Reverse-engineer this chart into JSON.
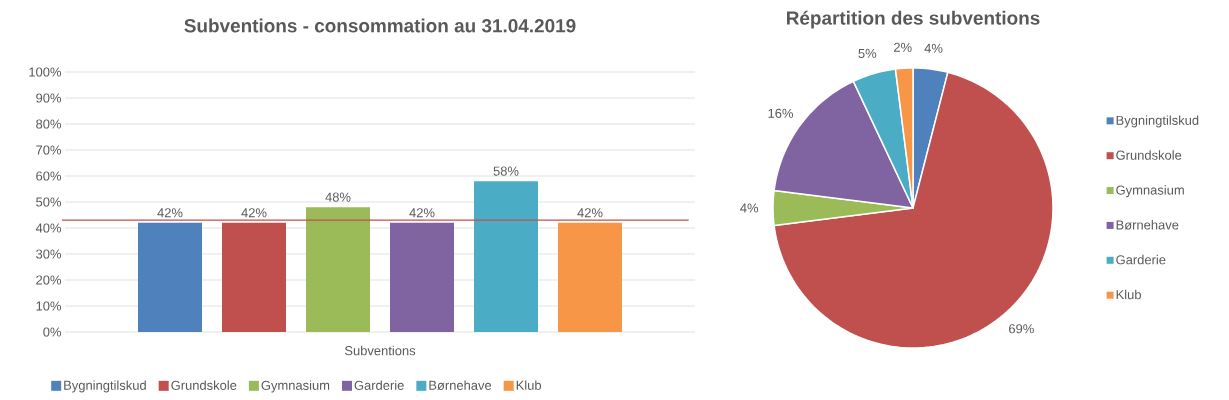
{
  "chart_data": [
    {
      "type": "bar",
      "title": "Subventions - consommation au 31.04.2019",
      "categories": [
        "Subventions"
      ],
      "series": [
        {
          "name": "Bygningtilskud",
          "color": "#4f81bd",
          "values": [
            42
          ],
          "value_labels": [
            "42%"
          ]
        },
        {
          "name": "Grundskole",
          "color": "#c0504d",
          "values": [
            42
          ],
          "value_labels": [
            "42%"
          ]
        },
        {
          "name": "Gymnasium",
          "color": "#9bbb59",
          "values": [
            48
          ],
          "value_labels": [
            "48%"
          ]
        },
        {
          "name": "Garderie",
          "color": "#8064a2",
          "values": [
            42
          ],
          "value_labels": [
            "42%"
          ]
        },
        {
          "name": "Børnehave",
          "color": "#4bacc6",
          "values": [
            58
          ],
          "value_labels": [
            "58%"
          ]
        },
        {
          "name": "Klub",
          "color": "#f79646",
          "values": [
            42
          ],
          "value_labels": [
            "42%"
          ]
        }
      ],
      "ylim": [
        0,
        100
      ],
      "yticks": [
        {
          "value": 0,
          "label": "0%"
        },
        {
          "value": 10,
          "label": "10%"
        },
        {
          "value": 20,
          "label": "20%"
        },
        {
          "value": 30,
          "label": "30%"
        },
        {
          "value": 40,
          "label": "40%"
        },
        {
          "value": 50,
          "label": "50%"
        },
        {
          "value": 60,
          "label": "60%"
        },
        {
          "value": 70,
          "label": "70%"
        },
        {
          "value": 80,
          "label": "80%"
        },
        {
          "value": 90,
          "label": "90%"
        },
        {
          "value": 100,
          "label": "100%"
        }
      ],
      "grid": "y",
      "legend": "bottom",
      "ref_lines": [
        {
          "axis": "y",
          "value": 43,
          "color": "#c0504d"
        }
      ]
    },
    {
      "type": "pie",
      "title": "Répartition des subventions",
      "categories": [
        "Bygningtilskud",
        "Grundskole",
        "Gymnasium",
        "Børnehave",
        "Garderie",
        "Klub"
      ],
      "values": [
        4,
        69,
        4,
        16,
        5,
        2
      ],
      "colors": [
        "#4f81bd",
        "#c0504d",
        "#9bbb59",
        "#8064a2",
        "#4bacc6",
        "#f79646"
      ],
      "value_labels": [
        "4%",
        "69%",
        "4%",
        "16%",
        "5%",
        "2%"
      ],
      "legend": "right"
    }
  ]
}
